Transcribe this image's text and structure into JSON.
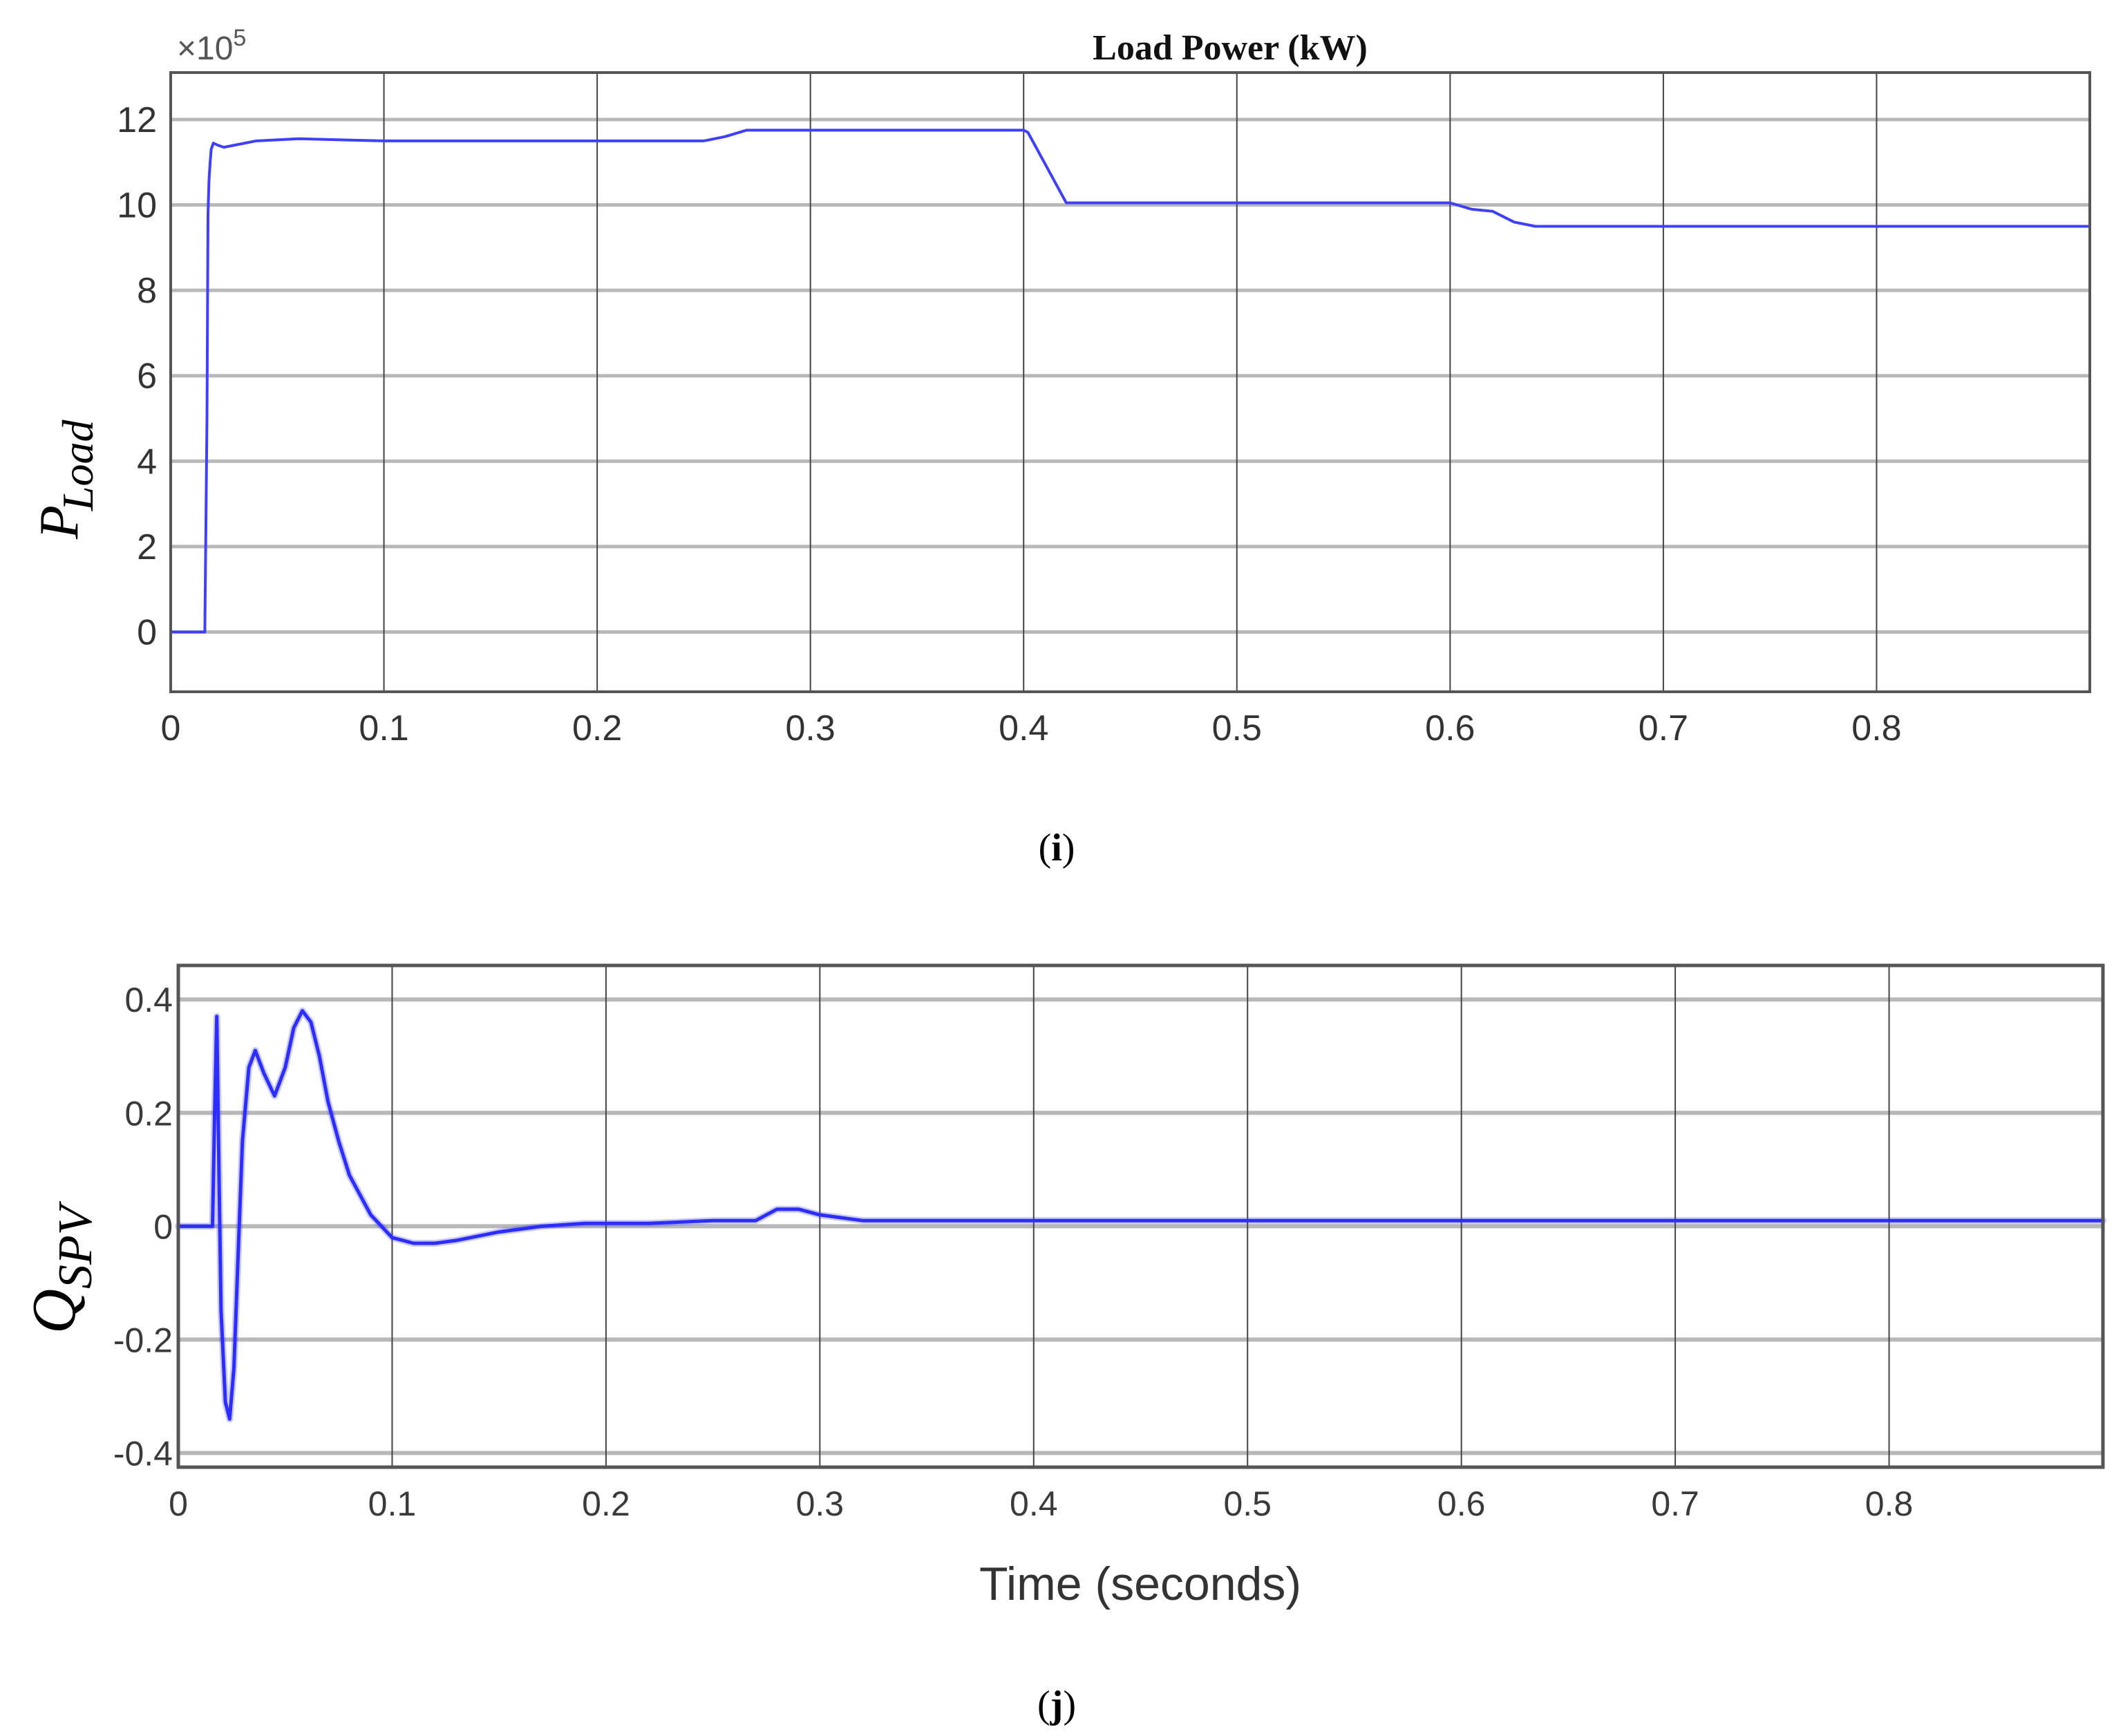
{
  "chart_data": [
    {
      "type": "line",
      "panel": "(i)",
      "title": "Load Power (kW)",
      "ylabel": "P_Load",
      "ylabel_main": "P",
      "ylabel_sub": "Load",
      "xlabel": "",
      "y_exponent_label": "×10^5",
      "y_exponent_prefix": "×10",
      "y_exponent_power": "5",
      "xlim": [
        0,
        0.9
      ],
      "ylim": [
        -1.4,
        13.1
      ],
      "xticks": [
        0,
        0.1,
        0.2,
        0.3,
        0.4,
        0.5,
        0.6,
        0.7,
        0.8
      ],
      "xtick_labels": [
        "0",
        "0.1",
        "0.2",
        "0.3",
        "0.4",
        "0.5",
        "0.6",
        "0.7",
        "0.8"
      ],
      "yticks": [
        0,
        2,
        4,
        6,
        8,
        10,
        12
      ],
      "ytick_labels": [
        "0",
        "2",
        "4",
        "6",
        "8",
        "10",
        "12"
      ],
      "grid": true,
      "line_color": "#3f3fff",
      "series": [
        {
          "x": [
            0,
            0.016,
            0.017,
            0.0175,
            0.018,
            0.0185,
            0.019,
            0.02,
            0.022,
            0.025,
            0.03,
            0.04,
            0.06,
            0.1,
            0.2,
            0.25,
            0.26,
            0.27,
            0.3,
            0.4,
            0.402,
            0.42,
            0.43,
            0.5,
            0.6,
            0.61,
            0.62,
            0.63,
            0.64,
            0.7,
            0.8,
            0.9
          ],
          "y": [
            0,
            0,
            5,
            9.8,
            10.6,
            11.0,
            11.3,
            11.45,
            11.4,
            11.35,
            11.4,
            11.5,
            11.55,
            11.5,
            11.5,
            11.5,
            11.6,
            11.75,
            11.75,
            11.75,
            11.7,
            10.05,
            10.05,
            10.05,
            10.05,
            9.9,
            9.85,
            9.6,
            9.5,
            9.5,
            9.5,
            9.5
          ]
        }
      ]
    },
    {
      "type": "line",
      "panel": "(j)",
      "title": "",
      "ylabel": "Q_SPV",
      "ylabel_main": "Q",
      "ylabel_sub": "SPV",
      "xlabel": "Time (seconds)",
      "xlim": [
        0,
        0.9
      ],
      "ylim": [
        -0.425,
        0.46
      ],
      "xticks": [
        0,
        0.1,
        0.2,
        0.3,
        0.4,
        0.5,
        0.6,
        0.7,
        0.8
      ],
      "xtick_labels": [
        "0",
        "0.1",
        "0.2",
        "0.3",
        "0.4",
        "0.5",
        "0.6",
        "0.7",
        "0.8"
      ],
      "yticks": [
        -0.4,
        -0.2,
        0,
        0.2,
        0.4
      ],
      "ytick_labels": [
        "-0.4",
        "-0.2",
        "0",
        "0.2",
        "0.4"
      ],
      "grid": true,
      "line_color": "#2d2dff",
      "series": [
        {
          "x": [
            0,
            0.016,
            0.017,
            0.018,
            0.019,
            0.02,
            0.022,
            0.024,
            0.026,
            0.028,
            0.03,
            0.033,
            0.036,
            0.04,
            0.045,
            0.05,
            0.054,
            0.058,
            0.062,
            0.066,
            0.07,
            0.075,
            0.08,
            0.09,
            0.1,
            0.11,
            0.12,
            0.13,
            0.15,
            0.17,
            0.19,
            0.22,
            0.25,
            0.27,
            0.28,
            0.29,
            0.3,
            0.32,
            0.35,
            0.4,
            0.45,
            0.5,
            0.55,
            0.6,
            0.65,
            0.7,
            0.75,
            0.8,
            0.85,
            0.9
          ],
          "y": [
            0,
            0,
            0.2,
            0.37,
            0.1,
            -0.15,
            -0.31,
            -0.34,
            -0.25,
            -0.05,
            0.15,
            0.28,
            0.31,
            0.27,
            0.23,
            0.28,
            0.35,
            0.38,
            0.36,
            0.3,
            0.22,
            0.15,
            0.09,
            0.02,
            -0.02,
            -0.03,
            -0.03,
            -0.025,
            -0.01,
            0,
            0.005,
            0.005,
            0.01,
            0.01,
            0.03,
            0.03,
            0.02,
            0.01,
            0.01,
            0.01,
            0.01,
            0.01,
            0.01,
            0.01,
            0.01,
            0.01,
            0.01,
            0.01,
            0.01,
            0.01
          ]
        }
      ]
    }
  ],
  "captions": {
    "panel_i": "(i)",
    "panel_i_letter": "i",
    "panel_j": "(j)",
    "panel_j_letter": "j"
  }
}
